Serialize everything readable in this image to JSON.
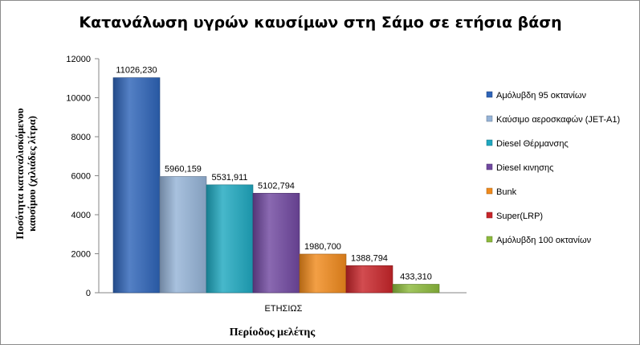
{
  "chart_data": {
    "type": "bar",
    "title": "Κατανάλωση υγρών καυσίμων στη Σάμο σε ετήσια βάση",
    "xlabel": "Περίοδος μελέτης",
    "ylabel_lines": [
      "Ποσότητα καταναλισκόμενου",
      "καυσίμου (χιλιάδες λίτρα)"
    ],
    "categories": [
      "ΕΤΗΣΙΩΣ"
    ],
    "ylim": [
      0,
      12000
    ],
    "yticks": [
      0,
      2000,
      4000,
      6000,
      8000,
      10000,
      12000
    ],
    "grid": false,
    "legend_position": "right",
    "series": [
      {
        "name": "Αμόλυβδη 95 οκτανίων",
        "values": [
          11026.23
        ],
        "label": "11026,230",
        "color": "#2e64b8"
      },
      {
        "name": "Καύσιμο αεροσκαφών (JET-A1)",
        "values": [
          5960.159
        ],
        "label": "5960,159",
        "color": "#95b3d7"
      },
      {
        "name": "Diesel Θέρμανσης",
        "values": [
          5531.911
        ],
        "label": "5531,911",
        "color": "#1fa8c0"
      },
      {
        "name": "Diesel κινησης",
        "values": [
          5102.794
        ],
        "label": "5102,794",
        "color": "#7048a0"
      },
      {
        "name": "Bunk",
        "values": [
          1980.7
        ],
        "label": "1980,700",
        "color": "#f08a1c"
      },
      {
        "name": "Super(LRP)",
        "values": [
          1388.794
        ],
        "label": "1388,794",
        "color": "#c8252a"
      },
      {
        "name": "Αμόλυβδη 100 οκτανίων",
        "values": [
          433.31
        ],
        "label": "433,310",
        "color": "#8cba3c"
      }
    ]
  }
}
